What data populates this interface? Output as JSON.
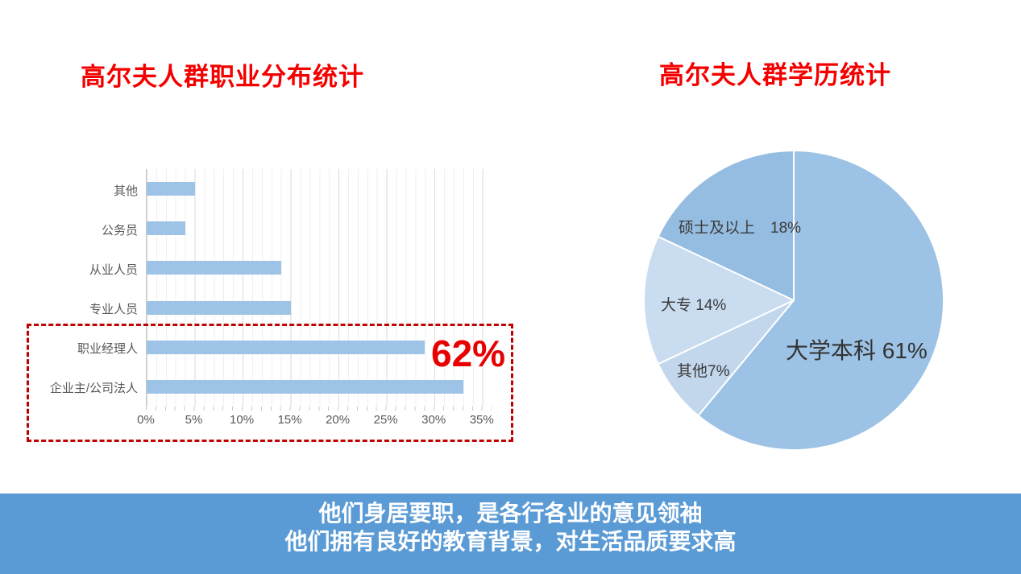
{
  "colors": {
    "title_red": "#f40000",
    "bar_blue": "#9dc3e6",
    "banner_blue": "#5b9bd5",
    "annotation_red": "#e80000",
    "dash_red": "#c00000",
    "axis_text": "#595959"
  },
  "banner": {
    "lines": [
      "他们身居要职，是各行各业的意见领袖",
      "他们拥有良好的教育背景，对生活品质要求高"
    ]
  },
  "chart_data": [
    {
      "type": "bar",
      "orientation": "horizontal",
      "title": "高尔夫人群职业分布统计",
      "categories": [
        "其他",
        "公务员",
        "从业人员",
        "专业人员",
        "职业经理人",
        "企业主/公司法人"
      ],
      "values": [
        5,
        4,
        14,
        15,
        29,
        33
      ],
      "unit": "%",
      "xlabel": "",
      "ylabel": "",
      "xlim": [
        0,
        36
      ],
      "xticks": [
        "0%",
        "5%",
        "10%",
        "15%",
        "20%",
        "25%",
        "30%",
        "35%"
      ],
      "grid": "minor vertical every 1%, major every 5%",
      "bar_color": "#9dc3e6",
      "annotation": {
        "text": "62%",
        "meaning": "职业经理人 29% + 企业主/公司法人 33% highlighted by red dashed box"
      }
    },
    {
      "type": "pie",
      "title": "高尔夫人群学历统计",
      "start_angle_deg": 0,
      "direction": "clockwise",
      "slices": [
        {
          "label": "大学本科",
          "value": 61,
          "display": "大学本科 61%",
          "color": "#9cc2e5"
        },
        {
          "label": "其他",
          "value": 7,
          "display": "其他7%",
          "color": "#c2d6ec"
        },
        {
          "label": "大专",
          "value": 14,
          "display": "大专 14%",
          "color": "#c9dcf0"
        },
        {
          "label": "硕士及以上",
          "value": 18,
          "display": "硕士及以上　18%",
          "color": "#95bce1"
        }
      ]
    }
  ]
}
